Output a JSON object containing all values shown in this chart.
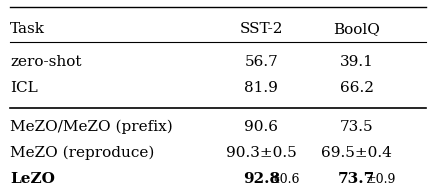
{
  "title": "",
  "columns": [
    "Task",
    "SST-2",
    "BoolQ"
  ],
  "rows": [
    {
      "task": "zero-shot",
      "sst2": "56.7",
      "boolq": "39.1",
      "bold": false
    },
    {
      "task": "ICL",
      "sst2": "81.9",
      "boolq": "66.2",
      "bold": false
    },
    {
      "task": "MeZO/MeZO (prefix)",
      "sst2": "90.6",
      "boolq": "73.5",
      "bold": false
    },
    {
      "task": "MeZO (reproduce)",
      "sst2": "90.3±0.5",
      "boolq": "69.5±0.4",
      "bold": false
    },
    {
      "task": "LeZO",
      "sst2": "92.8±0.6",
      "boolq": "73.7±0.9",
      "bold": true
    }
  ],
  "group1_rows": [
    0,
    1
  ],
  "group2_rows": [
    2,
    3,
    4
  ],
  "bg_color": "#ffffff",
  "text_color": "#000000",
  "line_color": "#000000",
  "font_size": 11,
  "bold_font_size": 11
}
